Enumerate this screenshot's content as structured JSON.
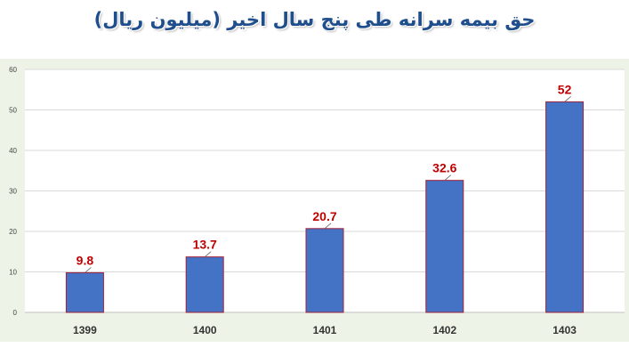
{
  "chart_data": {
    "type": "bar",
    "title": "حق بیمه سرانه طی پنج سال اخیر (میلیون ریال)",
    "categories": [
      "1399",
      "1400",
      "1401",
      "1402",
      "1403"
    ],
    "values": [
      9.8,
      13.7,
      20.7,
      32.6,
      52
    ],
    "data_labels": [
      "9.8",
      "13.7",
      "20.7",
      "32.6",
      "52"
    ],
    "y_ticks": [
      "0",
      "10",
      "20",
      "30",
      "40",
      "50",
      "60"
    ],
    "ylim": [
      0,
      60
    ],
    "grid": true,
    "legend": "none",
    "colors": {
      "bar_fill": "#4472c4",
      "bar_stroke": "#a0213a",
      "data_label": "#c00000",
      "title": "#1f4e8c",
      "band": "#edf4e7"
    }
  }
}
